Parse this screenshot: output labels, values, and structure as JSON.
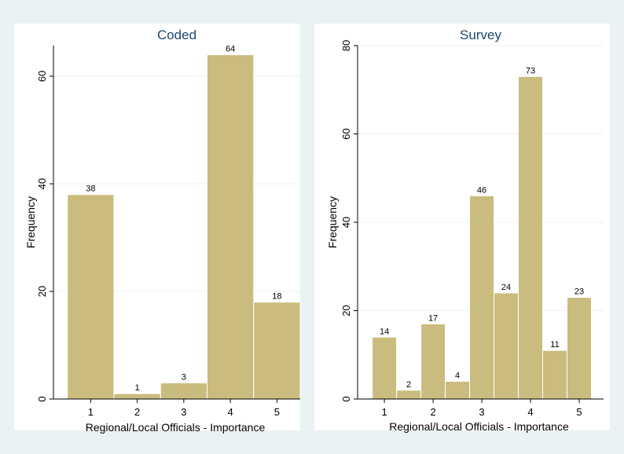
{
  "chart_data": [
    {
      "type": "bar",
      "title": "Coded",
      "xlabel": "Regional/Local Officials - Importance",
      "ylabel": "Frequency",
      "x_ticks": [
        1,
        2,
        3,
        4,
        5
      ],
      "y_ticks": [
        0,
        20,
        40,
        60
      ],
      "xlim": [
        0.2,
        5.5
      ],
      "ylim": [
        0,
        65.7
      ],
      "grid": true,
      "bins": [
        {
          "x0": 0.5,
          "x1": 1.5,
          "value": 38
        },
        {
          "x0": 1.5,
          "x1": 2.5,
          "value": 1
        },
        {
          "x0": 2.5,
          "x1": 3.5,
          "value": 3
        },
        {
          "x0": 3.5,
          "x1": 4.5,
          "value": 64
        },
        {
          "x0": 4.5,
          "x1": 5.5,
          "value": 18
        }
      ]
    },
    {
      "type": "bar",
      "title": "Survey",
      "xlabel": "Regional/Local Officials - Importance",
      "ylabel": "Frequency",
      "x_ticks": [
        1,
        2,
        3,
        4,
        5
      ],
      "y_ticks": [
        0,
        20,
        40,
        60,
        80
      ],
      "xlim": [
        0.45,
        5.5
      ],
      "ylim": [
        0,
        80
      ],
      "grid": true,
      "bins": [
        {
          "x0": 0.75,
          "x1": 1.25,
          "value": 14
        },
        {
          "x0": 1.25,
          "x1": 1.75,
          "value": 2
        },
        {
          "x0": 1.75,
          "x1": 2.25,
          "value": 17
        },
        {
          "x0": 2.25,
          "x1": 2.75,
          "value": 4
        },
        {
          "x0": 2.75,
          "x1": 3.25,
          "value": 46
        },
        {
          "x0": 3.25,
          "x1": 3.75,
          "value": 24
        },
        {
          "x0": 3.75,
          "x1": 4.25,
          "value": 73
        },
        {
          "x0": 4.25,
          "x1": 4.75,
          "value": 11
        },
        {
          "x0": 4.75,
          "x1": 5.25,
          "value": 23
        }
      ]
    }
  ],
  "colors": {
    "bar_fill": "#c9bc7e",
    "plot_background": "#ffffff",
    "outer_background": "#eaf2f3",
    "title_color": "#1a476f"
  }
}
